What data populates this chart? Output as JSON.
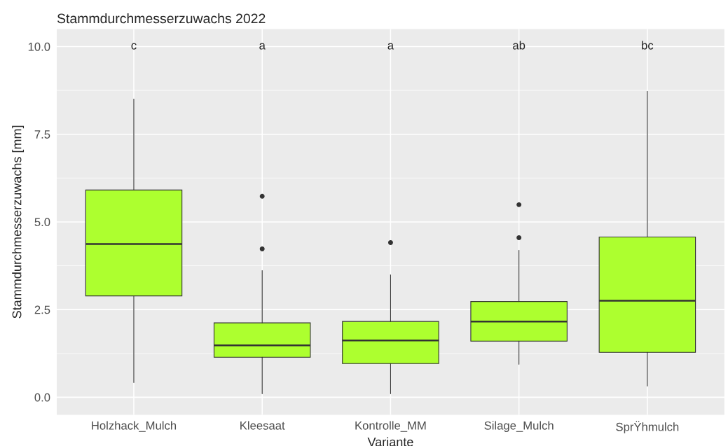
{
  "chart_data": {
    "type": "box",
    "title": "Stammdurchmesserzuwachs 2022",
    "xlabel": "Variante",
    "ylabel": "Stammdurchmesserzuwachs [mm]",
    "categories": [
      "Holzhack_Mulch",
      "Kleesaat",
      "Kontrolle_MM",
      "Silage_Mulch",
      "SprŸhmulch"
    ],
    "color": "#adff2f",
    "boxes": [
      {
        "low": 0.42,
        "q1": 2.89,
        "median": 4.37,
        "q3": 5.91,
        "high": 8.5
      },
      {
        "low": 0.1,
        "q1": 1.14,
        "median": 1.48,
        "q3": 2.12,
        "high": 3.61,
        "outliers": [
          4.23,
          5.73
        ]
      },
      {
        "low": 0.1,
        "q1": 0.96,
        "median": 1.62,
        "q3": 2.16,
        "high": 3.49,
        "outliers": [
          4.41
        ]
      },
      {
        "low": 0.94,
        "q1": 1.6,
        "median": 2.16,
        "q3": 2.73,
        "high": 4.19,
        "outliers": [
          4.55,
          5.49
        ]
      },
      {
        "low": 0.32,
        "q1": 1.28,
        "median": 2.75,
        "q3": 4.57,
        "high": 8.72
      }
    ],
    "annotations": [
      "c",
      "a",
      "a",
      "ab",
      "bc"
    ],
    "ylim": [
      -0.5,
      10.5
    ],
    "yticks": [
      {
        "value": 0,
        "label": "0.0"
      },
      {
        "value": 2.5,
        "label": "2.5"
      },
      {
        "value": 5,
        "label": "5.0"
      },
      {
        "value": 7.5,
        "label": "7.5"
      },
      {
        "value": 10,
        "label": "10.0"
      }
    ],
    "grid": true
  }
}
